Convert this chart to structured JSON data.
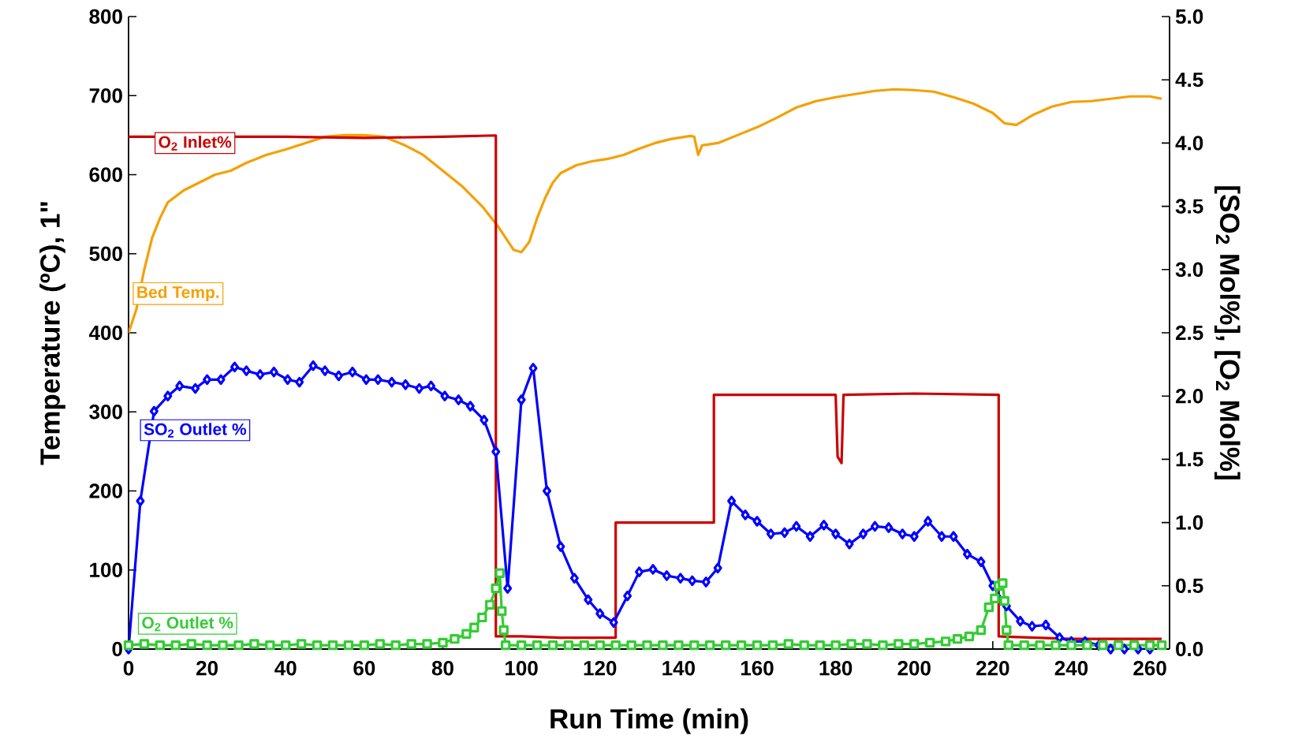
{
  "chart_data": {
    "type": "line",
    "xlabel": "Run Time (min)",
    "ylabel": "Temperature (ºC),  1\"",
    "y2label": "[SO$_{2}$ Mol%], [O$_{2}$ Mol%]",
    "xlim": [
      0,
      265
    ],
    "xticks": [
      0,
      20,
      40,
      60,
      80,
      100,
      120,
      140,
      160,
      180,
      200,
      220,
      240,
      260
    ],
    "ylim": [
      0,
      800
    ],
    "yticks": [
      0,
      100,
      200,
      300,
      400,
      500,
      600,
      700,
      800
    ],
    "y2lim": [
      0,
      5
    ],
    "y2ticks": [
      {
        "value": 0,
        "label": "0.0"
      },
      {
        "value": 0.5,
        "label": "0.5"
      },
      {
        "value": 1,
        "label": "1.0"
      },
      {
        "value": 1.5,
        "label": "1.5"
      },
      {
        "value": 2,
        "label": "2.0"
      },
      {
        "value": 2.5,
        "label": "2.5"
      },
      {
        "value": 3,
        "label": "3.0"
      },
      {
        "value": 3.5,
        "label": "3.5"
      },
      {
        "value": 4,
        "label": "4.0"
      },
      {
        "value": 4.5,
        "label": "4.5"
      },
      {
        "value": 5,
        "label": "5.0"
      }
    ],
    "series": [
      {
        "name": "O$_{2}$ Inlet%",
        "color": "#cc0000",
        "axis": "y2",
        "marker": "none",
        "x": [
          0,
          40,
          60,
          80,
          93.5,
          93.5,
          100,
          110,
          124,
          124,
          135,
          149,
          149,
          165,
          180,
          180.5,
          181.5,
          182,
          200,
          221.5,
          221.5,
          240,
          263
        ],
        "values": [
          4.05,
          4.05,
          4.04,
          4.05,
          4.06,
          0.1,
          0.1,
          0.09,
          0.09,
          1.0,
          1.0,
          1.0,
          2.01,
          2.01,
          2.01,
          1.52,
          1.47,
          2.01,
          2.02,
          2.01,
          0.1,
          0.08,
          0.08
        ]
      },
      {
        "name": "Bed Temp.",
        "color": "#f5a000",
        "marker": "none",
        "x": [
          0,
          2,
          4,
          6,
          8,
          10,
          14,
          18,
          22,
          26,
          30,
          35,
          40,
          45,
          50,
          55,
          60,
          65,
          70,
          75,
          80,
          85,
          90,
          94,
          96,
          98,
          100,
          102,
          104,
          106,
          108,
          110,
          114,
          118,
          122,
          126,
          130,
          134,
          138,
          143,
          144,
          145,
          146,
          150,
          155,
          160,
          165,
          170,
          175,
          180,
          185,
          190,
          195,
          200,
          205,
          210,
          215,
          220,
          223,
          226,
          230,
          235,
          240,
          245,
          250,
          255,
          260,
          263
        ],
        "values": [
          400,
          430,
          480,
          520,
          545,
          565,
          580,
          590,
          600,
          605,
          615,
          625,
          632,
          640,
          648,
          650,
          650,
          648,
          638,
          625,
          605,
          585,
          560,
          535,
          520,
          505,
          502,
          515,
          545,
          570,
          590,
          602,
          612,
          617,
          620,
          625,
          633,
          640,
          645,
          649,
          648,
          625,
          637,
          640,
          650,
          660,
          672,
          685,
          693,
          698,
          702,
          706,
          708,
          707,
          705,
          698,
          690,
          678,
          665,
          663,
          675,
          686,
          692,
          693,
          696,
          699,
          699,
          696
        ]
      },
      {
        "name": "SO$_{2}$ Outlet %",
        "color": "#0000ff",
        "axis": "y2",
        "marker": "diamond",
        "x": [
          0,
          3,
          6.5,
          10,
          13,
          17,
          20,
          23.5,
          27,
          30,
          33.5,
          37,
          40.5,
          43.5,
          47,
          50,
          53.5,
          57,
          60.5,
          63.5,
          67,
          70.5,
          74,
          77,
          80.5,
          84,
          87,
          90.5,
          93.5,
          96.5,
          100,
          103,
          106.5,
          110,
          113.5,
          117,
          120,
          123.5,
          127,
          130,
          133.5,
          137,
          140.5,
          143.5,
          147,
          150,
          153.5,
          157,
          160,
          163.5,
          167,
          170,
          173.5,
          177,
          180,
          183.5,
          187,
          190,
          193.5,
          197,
          200,
          203.5,
          207,
          210,
          213.5,
          217,
          220,
          223.5,
          227,
          230,
          233.5,
          237,
          240,
          243.5,
          247,
          250,
          253.5,
          257,
          260
        ],
        "values": [
          0,
          1.17,
          1.88,
          2.0,
          2.08,
          2.06,
          2.13,
          2.13,
          2.23,
          2.2,
          2.17,
          2.19,
          2.13,
          2.11,
          2.24,
          2.2,
          2.16,
          2.19,
          2.13,
          2.13,
          2.11,
          2.09,
          2.06,
          2.08,
          2.0,
          1.97,
          1.92,
          1.81,
          1.56,
          0.48,
          1.97,
          2.22,
          1.25,
          0.81,
          0.56,
          0.39,
          0.28,
          0.21,
          0.42,
          0.61,
          0.63,
          0.58,
          0.56,
          0.54,
          0.53,
          0.64,
          1.17,
          1.06,
          1.01,
          0.91,
          0.92,
          0.97,
          0.89,
          0.98,
          0.91,
          0.83,
          0.91,
          0.97,
          0.96,
          0.91,
          0.89,
          1.01,
          0.89,
          0.89,
          0.75,
          0.69,
          0.5,
          0.34,
          0.22,
          0.18,
          0.19,
          0.09,
          0.06,
          0.06,
          0.03,
          0,
          0,
          0,
          0
        ]
      },
      {
        "name": "O$_{2}$ Outlet %",
        "color": "#33cc33",
        "axis": "y2",
        "marker": "square",
        "x": [
          0,
          4,
          8,
          12,
          16,
          20,
          24,
          28,
          32,
          36,
          40,
          44,
          48,
          52,
          56,
          60,
          64,
          68,
          72,
          76,
          80,
          83,
          86,
          88,
          90,
          92,
          93.5,
          94.5,
          95,
          95.5,
          96,
          100,
          104,
          108,
          112,
          116,
          120,
          124,
          128,
          132,
          136,
          140,
          144,
          148,
          152,
          156,
          160,
          164,
          168,
          172,
          176,
          180,
          184,
          188,
          192,
          196,
          200,
          204,
          208,
          211,
          214,
          217,
          219,
          220.5,
          221.5,
          222.5,
          223,
          223.5,
          224,
          228,
          232,
          236,
          240,
          244,
          248,
          252,
          256,
          260,
          263
        ],
        "values": [
          0.03,
          0.04,
          0.03,
          0.03,
          0.04,
          0.03,
          0.03,
          0.03,
          0.04,
          0.03,
          0.03,
          0.04,
          0.03,
          0.03,
          0.03,
          0.03,
          0.04,
          0.03,
          0.04,
          0.04,
          0.05,
          0.08,
          0.12,
          0.17,
          0.25,
          0.35,
          0.48,
          0.6,
          0.3,
          0.15,
          0.03,
          0.03,
          0.03,
          0.03,
          0.03,
          0.03,
          0.03,
          0.03,
          0.03,
          0.03,
          0.03,
          0.03,
          0.03,
          0.03,
          0.03,
          0.03,
          0.03,
          0.03,
          0.04,
          0.03,
          0.03,
          0.03,
          0.04,
          0.04,
          0.03,
          0.04,
          0.04,
          0.05,
          0.06,
          0.08,
          0.1,
          0.15,
          0.33,
          0.4,
          0.5,
          0.52,
          0.38,
          0.15,
          0.03,
          0.03,
          0.03,
          0.03,
          0.03,
          0.03,
          0.03,
          0.03,
          0.03,
          0.03,
          0.03
        ]
      }
    ]
  }
}
